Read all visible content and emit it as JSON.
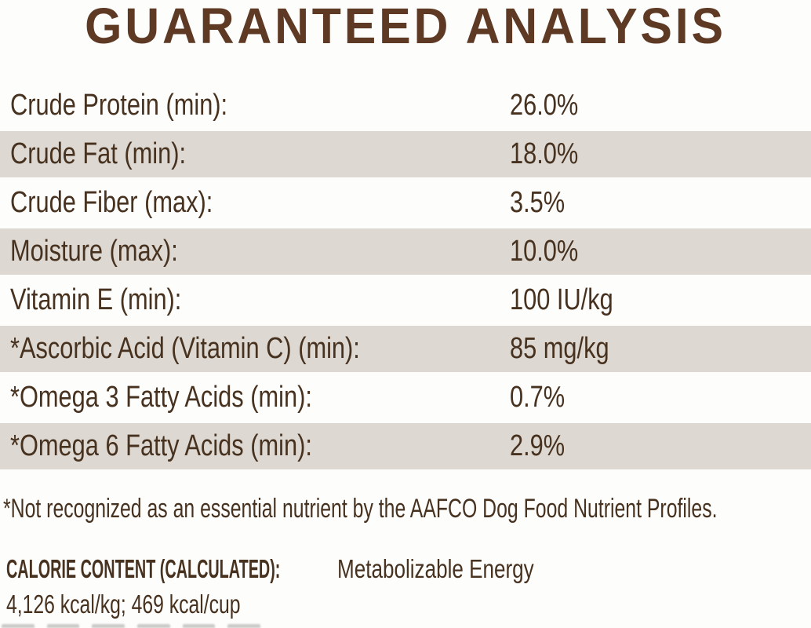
{
  "page": {
    "background_color": "#fdfdfc",
    "text_color": "#47311f",
    "row_shade_color": "#ddd8d1",
    "title_color": "#5e3a25"
  },
  "title": "GUARANTEED ANALYSIS",
  "analysis_table": {
    "rows": [
      {
        "label": "Crude Protein (min):",
        "value": "26.0%"
      },
      {
        "label": "Crude Fat (min):",
        "value": "18.0%"
      },
      {
        "label": "Crude Fiber (max):",
        "value": "3.5%"
      },
      {
        "label": "Moisture (max):",
        "value": "10.0%"
      },
      {
        "label": "Vitamin E (min):",
        "value": "100 IU/kg"
      },
      {
        "label": "*Ascorbic Acid (Vitamin C) (min):",
        "value": "85 mg/kg"
      },
      {
        "label": "*Omega 3 Fatty Acids (min):",
        "value": "0.7%"
      },
      {
        "label": "*Omega 6 Fatty Acids (min):",
        "value": "2.9%"
      }
    ]
  },
  "footnote": "*Not recognized as an essential nutrient by the AAFCO Dog Food Nutrient Profiles.",
  "calorie_content": {
    "heading": "CALORIE CONTENT (CALCULATED):",
    "heading_suffix": "Metabolizable Energy",
    "values_line": "4,126 kcal/kg; 469 kcal/cup"
  }
}
